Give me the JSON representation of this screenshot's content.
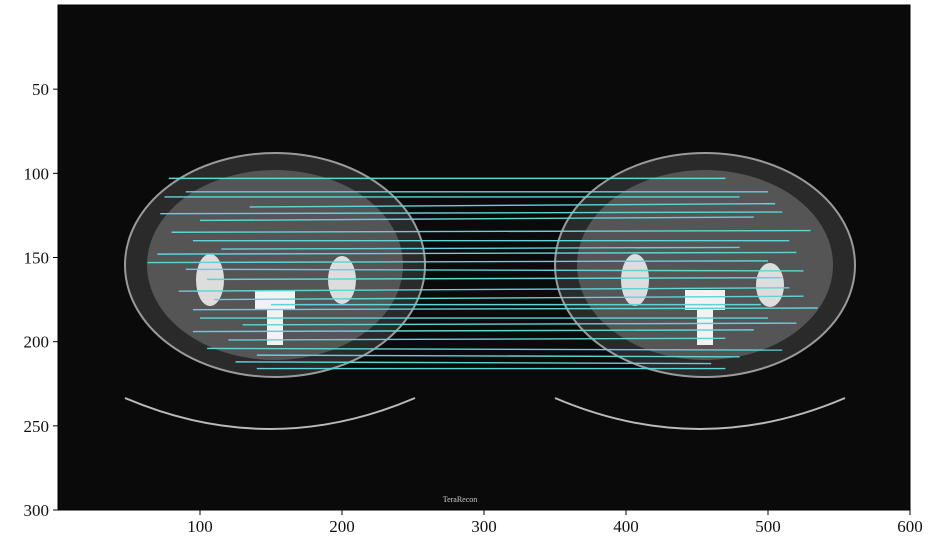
{
  "chart_data": {
    "type": "image",
    "xlim": [
      0,
      600
    ],
    "ylim": [
      300,
      0
    ],
    "xticks": [
      100,
      200,
      300,
      400,
      500,
      600
    ],
    "yticks": [
      50,
      100,
      150,
      200,
      250,
      300
    ],
    "watermark": "TeraRecon",
    "line_color": "#5fd3d8",
    "matches": [
      [
        78,
        103,
        470,
        103
      ],
      [
        90,
        111,
        500,
        111
      ],
      [
        75,
        114,
        480,
        114
      ],
      [
        72,
        124,
        510,
        123
      ],
      [
        100,
        128,
        490,
        126
      ],
      [
        80,
        135,
        530,
        134
      ],
      [
        95,
        140,
        515,
        140
      ],
      [
        70,
        148,
        520,
        147
      ],
      [
        63,
        153,
        500,
        152
      ],
      [
        90,
        157,
        525,
        158
      ],
      [
        105,
        163,
        510,
        162
      ],
      [
        85,
        170,
        515,
        168
      ],
      [
        110,
        175,
        525,
        173
      ],
      [
        95,
        181,
        535,
        180
      ],
      [
        100,
        186,
        500,
        186
      ],
      [
        130,
        190,
        520,
        189
      ],
      [
        95,
        194,
        490,
        193
      ],
      [
        120,
        199,
        470,
        198
      ],
      [
        105,
        204,
        510,
        205
      ],
      [
        140,
        208,
        480,
        209
      ],
      [
        125,
        212,
        460,
        213
      ],
      [
        140,
        216,
        470,
        216
      ],
      [
        135,
        120,
        505,
        118
      ],
      [
        115,
        145,
        480,
        144
      ],
      [
        150,
        178,
        495,
        178
      ]
    ]
  }
}
